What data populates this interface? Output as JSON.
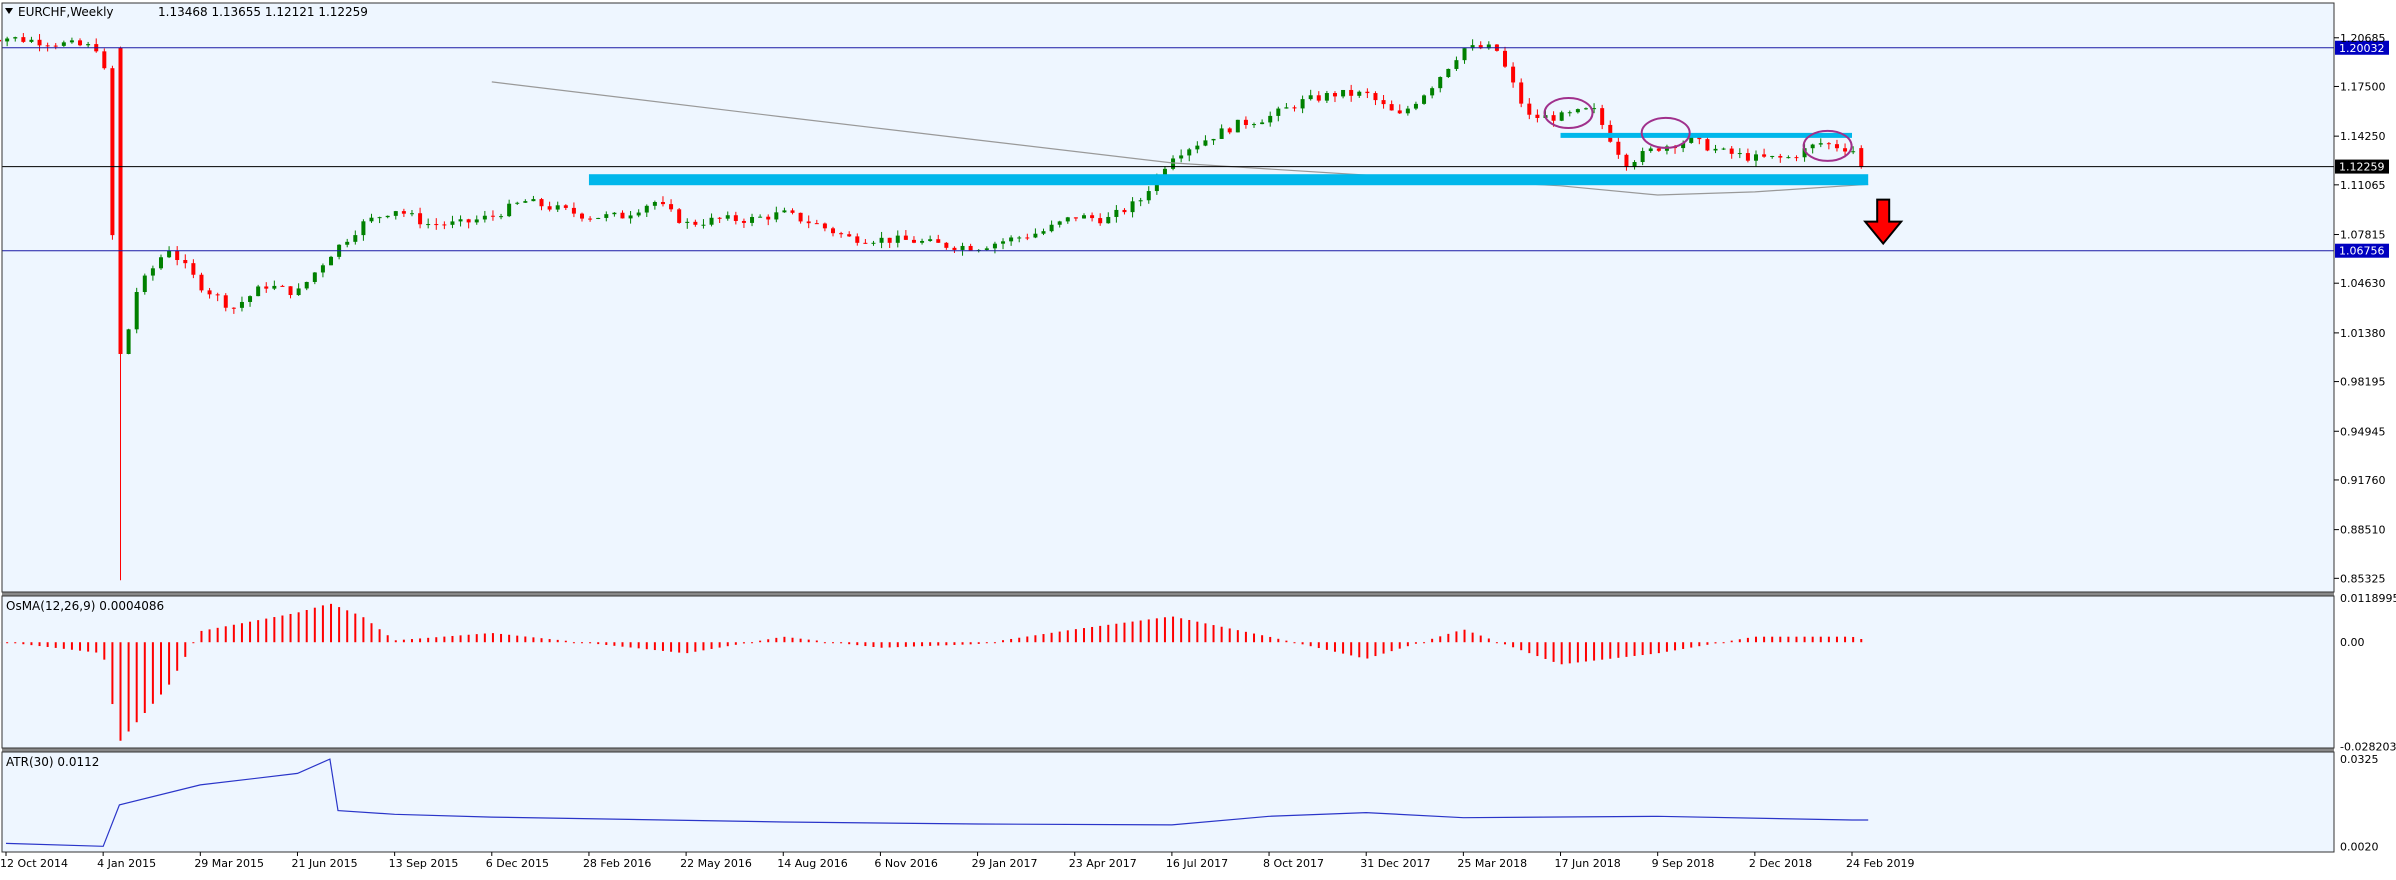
{
  "chart_data": {
    "type": "candlestick",
    "symbol_title": "EURCHF,Weekly",
    "ohlc_header": "1.13468 1.13655 1.12121 1.12259",
    "colors": {
      "background": "#eef6ff",
      "frame": "#333333",
      "bull": "#008000",
      "bear": "#ff0000",
      "ma": "#999999",
      "zone": "#00b7eb",
      "hline": "#1a1aa6",
      "atr": "#2a35c9",
      "osma": "#ff0000",
      "ellipse": "#a0308c",
      "label_bg": "#0000c0"
    },
    "y_axis_ticks": [
      "1.20685",
      "1.17500",
      "1.14250",
      "1.11065",
      "1.07815",
      "1.04630",
      "1.01380",
      "0.98195",
      "0.94945",
      "0.91760",
      "0.88510",
      "0.85325"
    ],
    "y_range": [
      0.8443,
      1.2296
    ],
    "price_labels": [
      {
        "value": 1.20032,
        "text": "1.20032",
        "style": "blue"
      },
      {
        "value": 1.12259,
        "text": "1.12259",
        "style": "black"
      },
      {
        "value": 1.06756,
        "text": "1.06756",
        "style": "blue"
      }
    ],
    "x_axis_labels": [
      "12 Oct 2014",
      "4 Jan 2015",
      "29 Mar 2015",
      "21 Jun 2015",
      "13 Sep 2015",
      "6 Dec 2015",
      "28 Feb 2016",
      "22 May 2016",
      "14 Aug 2016",
      "6 Nov 2016",
      "29 Jan 2017",
      "23 Apr 2017",
      "16 Jul 2017",
      "8 Oct 2017",
      "31 Dec 2017",
      "25 Mar 2018",
      "17 Jun 2018",
      "9 Sep 2018",
      "2 Dec 2018",
      "24 Feb 2019"
    ],
    "closes": [
      {
        "label": "12 Oct 2014",
        "value": 1.207
      },
      {
        "label": "4 Jan 2015",
        "value": 1.2
      },
      {
        "label": "18 Jan 2015",
        "value": 0.985
      },
      {
        "label": "1 Feb 2015",
        "value": 1.04
      },
      {
        "label": "1 Mar 2015",
        "value": 1.07
      },
      {
        "label": "29 Mar 2015",
        "value": 1.045
      },
      {
        "label": "26 Apr 2015",
        "value": 1.03
      },
      {
        "label": "24 May 2015",
        "value": 1.045
      },
      {
        "label": "21 Jun 2015",
        "value": 1.04
      },
      {
        "label": "19 Jul 2015",
        "value": 1.065
      },
      {
        "label": "16 Aug 2015",
        "value": 1.085
      },
      {
        "label": "13 Sep 2015",
        "value": 1.095
      },
      {
        "label": "11 Oct 2015",
        "value": 1.085
      },
      {
        "label": "8 Nov 2015",
        "value": 1.085
      },
      {
        "label": "6 Dec 2015",
        "value": 1.09
      },
      {
        "label": "3 Jan 2016",
        "value": 1.1
      },
      {
        "label": "31 Jan 2016",
        "value": 1.095
      },
      {
        "label": "28 Feb 2016",
        "value": 1.09
      },
      {
        "label": "27 Mar 2016",
        "value": 1.09
      },
      {
        "label": "24 Apr 2016",
        "value": 1.1
      },
      {
        "label": "22 May 2016",
        "value": 1.085
      },
      {
        "label": "19 Jun 2016",
        "value": 1.088
      },
      {
        "label": "17 Jul 2016",
        "value": 1.088
      },
      {
        "label": "14 Aug 2016",
        "value": 1.092
      },
      {
        "label": "11 Sep 2016",
        "value": 1.085
      },
      {
        "label": "9 Oct 2016",
        "value": 1.076
      },
      {
        "label": "6 Nov 2016",
        "value": 1.075
      },
      {
        "label": "4 Dec 2016",
        "value": 1.074
      },
      {
        "label": "1 Jan 2017",
        "value": 1.071
      },
      {
        "label": "29 Jan 2017",
        "value": 1.07
      },
      {
        "label": "26 Feb 2017",
        "value": 1.075
      },
      {
        "label": "26 Mar 2017",
        "value": 1.08
      },
      {
        "label": "23 Apr 2017",
        "value": 1.09
      },
      {
        "label": "21 May 2017",
        "value": 1.088
      },
      {
        "label": "18 Jun 2017",
        "value": 1.1
      },
      {
        "label": "16 Jul 2017",
        "value": 1.13
      },
      {
        "label": "13 Aug 2017",
        "value": 1.14
      },
      {
        "label": "10 Sep 2017",
        "value": 1.15
      },
      {
        "label": "8 Oct 2017",
        "value": 1.155
      },
      {
        "label": "5 Nov 2017",
        "value": 1.165
      },
      {
        "label": "3 Dec 2017",
        "value": 1.17
      },
      {
        "label": "31 Dec 2017",
        "value": 1.17
      },
      {
        "label": "28 Jan 2018",
        "value": 1.155
      },
      {
        "label": "25 Feb 2018",
        "value": 1.175
      },
      {
        "label": "25 Mar 2018",
        "value": 1.2
      },
      {
        "label": "22 Apr 2018",
        "value": 1.2
      },
      {
        "label": "20 May 2018",
        "value": 1.155
      },
      {
        "label": "17 Jun 2018",
        "value": 1.155
      },
      {
        "label": "15 Jul 2018",
        "value": 1.16
      },
      {
        "label": "12 Aug 2018",
        "value": 1.125
      },
      {
        "label": "9 Sep 2018",
        "value": 1.135
      },
      {
        "label": "7 Oct 2018",
        "value": 1.14
      },
      {
        "label": "4 Nov 2018",
        "value": 1.132
      },
      {
        "label": "2 Dec 2018",
        "value": 1.128
      },
      {
        "label": "30 Dec 2018",
        "value": 1.128
      },
      {
        "label": "27 Jan 2019",
        "value": 1.138
      },
      {
        "label": "24 Feb 2019",
        "value": 1.134
      },
      {
        "label": "10 Mar 2019",
        "value": 1.1226
      }
    ],
    "moving_average": [
      {
        "label": "6 Dec 2015",
        "value": 1.178
      },
      {
        "label": "14 Aug 2016",
        "value": 1.155
      },
      {
        "label": "29 Jan 2017",
        "value": 1.14
      },
      {
        "label": "16 Jul 2017",
        "value": 1.125
      },
      {
        "label": "31 Dec 2017",
        "value": 1.117
      },
      {
        "label": "17 Jun 2018",
        "value": 1.11
      },
      {
        "label": "9 Sep 2018",
        "value": 1.104
      },
      {
        "label": "2 Dec 2018",
        "value": 1.106
      },
      {
        "label": "10 Mar 2019",
        "value": 1.111
      }
    ],
    "zones": [
      {
        "from": "28 Feb 2016",
        "to": "10 Mar 2019",
        "level": 1.114
      },
      {
        "from": "17 Jun 2018",
        "to": "24 Feb 2019",
        "level": 1.143
      }
    ],
    "osma": {
      "title": "OsMA(12,26,9) 0.0004086",
      "ticks": [
        "0.0118995",
        "0.00",
        "-0.028203"
      ],
      "range": [
        -0.0286,
        0.0125
      ],
      "values": [
        {
          "label": "12 Oct 2014",
          "value": 0.0
        },
        {
          "label": "4 Jan 2015",
          "value": -0.003
        },
        {
          "label": "18 Jan 2015",
          "value": -0.027
        },
        {
          "label": "1 Mar 2015",
          "value": -0.012
        },
        {
          "label": "29 Mar 2015",
          "value": 0.003
        },
        {
          "label": "21 Jun 2015",
          "value": 0.008
        },
        {
          "label": "19 Jul 2015",
          "value": 0.0105
        },
        {
          "label": "16 Aug 2015",
          "value": 0.007
        },
        {
          "label": "13 Sep 2015",
          "value": 0.0005
        },
        {
          "label": "6 Dec 2015",
          "value": 0.0025
        },
        {
          "label": "22 May 2016",
          "value": -0.003
        },
        {
          "label": "14 Aug 2016",
          "value": 0.0015
        },
        {
          "label": "6 Nov 2016",
          "value": -0.0015
        },
        {
          "label": "29 Jan 2017",
          "value": -0.0005
        },
        {
          "label": "23 Apr 2017",
          "value": 0.0035
        },
        {
          "label": "16 Jul 2017",
          "value": 0.007
        },
        {
          "label": "8 Oct 2017",
          "value": 0.0015
        },
        {
          "label": "31 Dec 2017",
          "value": -0.0045
        },
        {
          "label": "25 Mar 2018",
          "value": 0.0035
        },
        {
          "label": "17 Jun 2018",
          "value": -0.006
        },
        {
          "label": "9 Sep 2018",
          "value": -0.003
        },
        {
          "label": "2 Dec 2018",
          "value": 0.0015
        },
        {
          "label": "24 Feb 2019",
          "value": 0.0015
        },
        {
          "label": "10 Mar 2019",
          "value": 0.0004
        }
      ]
    },
    "atr": {
      "title": "ATR(30) 0.0112",
      "ticks": [
        "0.0325",
        "0.0020"
      ],
      "range": [
        0.0,
        0.035
      ],
      "values": [
        {
          "label": "12 Oct 2014",
          "value": 0.003
        },
        {
          "label": "4 Jan 2015",
          "value": 0.002
        },
        {
          "label": "18 Jan 2015",
          "value": 0.0165
        },
        {
          "label": "29 Mar 2015",
          "value": 0.0235
        },
        {
          "label": "21 Jun 2015",
          "value": 0.0275
        },
        {
          "label": "19 Jul 2015",
          "value": 0.0325
        },
        {
          "label": "26 Jul 2015",
          "value": 0.0145
        },
        {
          "label": "13 Sep 2015",
          "value": 0.0132
        },
        {
          "label": "6 Dec 2015",
          "value": 0.0122
        },
        {
          "label": "14 Aug 2016",
          "value": 0.0105
        },
        {
          "label": "29 Jan 2017",
          "value": 0.0098
        },
        {
          "label": "16 Jul 2017",
          "value": 0.0095
        },
        {
          "label": "8 Oct 2017",
          "value": 0.0125
        },
        {
          "label": "31 Dec 2017",
          "value": 0.0138
        },
        {
          "label": "25 Mar 2018",
          "value": 0.012
        },
        {
          "label": "9 Sep 2018",
          "value": 0.0125
        },
        {
          "label": "24 Feb 2019",
          "value": 0.0112
        },
        {
          "label": "10 Mar 2019",
          "value": 0.0112
        }
      ]
    }
  }
}
